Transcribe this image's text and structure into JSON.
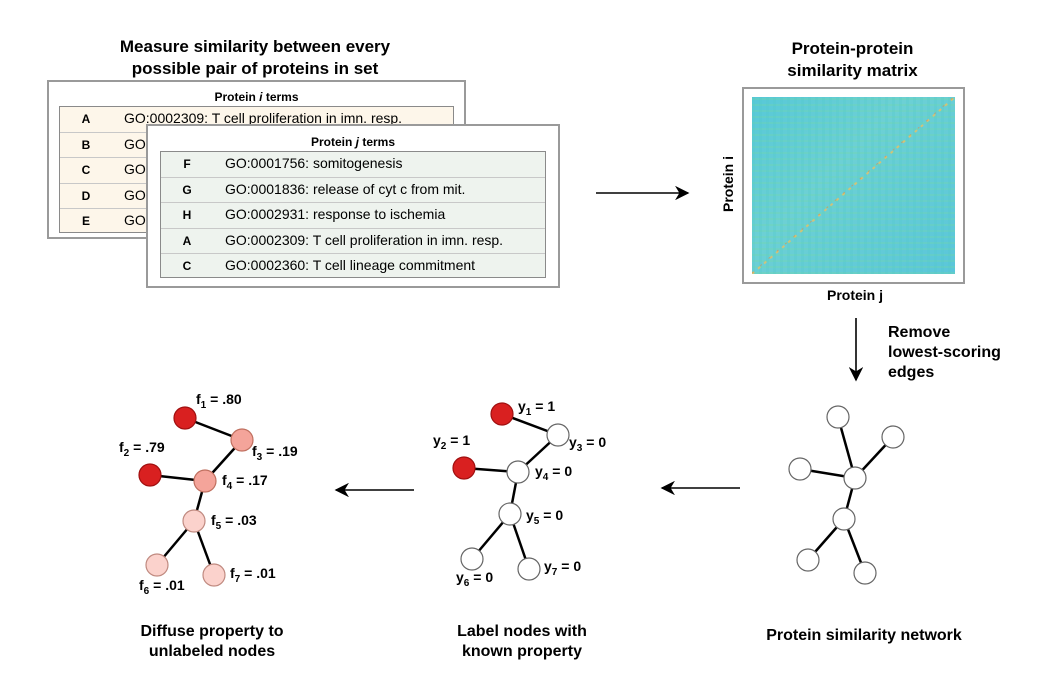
{
  "step1": {
    "title_line1": "Measure similarity between every",
    "title_line2": "possible pair of proteins in set",
    "table_i": {
      "header_prefix": "Protein ",
      "header_var": "i",
      "header_suffix": " terms",
      "rows": [
        {
          "letter": "A",
          "term": "GO:0002309: T cell proliferation in imn. resp."
        },
        {
          "letter": "B",
          "term": "GO"
        },
        {
          "letter": "C",
          "term": "GO"
        },
        {
          "letter": "D",
          "term": "GO"
        },
        {
          "letter": "E",
          "term": "GO"
        }
      ]
    },
    "table_j": {
      "header_prefix": "Protein ",
      "header_var": "j",
      "header_suffix": " terms",
      "rows": [
        {
          "letter": "F",
          "term": "GO:0001756: somitogenesis"
        },
        {
          "letter": "G",
          "term": "GO:0001836: release of cyt c from mit."
        },
        {
          "letter": "H",
          "term": "GO:0002931: response to ischemia"
        },
        {
          "letter": "A",
          "term": "GO:0002309: T cell proliferation in imn. resp."
        },
        {
          "letter": "C",
          "term": "GO:0002360: T cell lineage commitment"
        }
      ]
    }
  },
  "step2": {
    "title_line1": "Protein-protein",
    "title_line2": "similarity matrix",
    "ylabel": "Protein i",
    "xlabel": "Protein j"
  },
  "step3": {
    "label_line1": "Remove",
    "label_line2": "lowest-scoring",
    "label_line3": "edges",
    "caption": "Protein similarity network"
  },
  "step4": {
    "caption_line1": "Label nodes with",
    "caption_line2": "known property",
    "labels": [
      {
        "sym": "y",
        "sub": "1",
        "val": " = 1"
      },
      {
        "sym": "y",
        "sub": "2",
        "val": " = 1"
      },
      {
        "sym": "y",
        "sub": "3",
        "val": " = 0"
      },
      {
        "sym": "y",
        "sub": "4",
        "val": " = 0"
      },
      {
        "sym": "y",
        "sub": "5",
        "val": " = 0"
      },
      {
        "sym": "y",
        "sub": "6",
        "val": " = 0"
      },
      {
        "sym": "y",
        "sub": "7",
        "val": " = 0"
      }
    ]
  },
  "step5": {
    "caption_line1": "Diffuse property to",
    "caption_line2": "unlabeled nodes",
    "labels": [
      {
        "sym": "f",
        "sub": "1",
        "val": " = .80"
      },
      {
        "sym": "f",
        "sub": "2",
        "val": " = .79"
      },
      {
        "sym": "f",
        "sub": "3",
        "val": " = .19"
      },
      {
        "sym": "f",
        "sub": "4",
        "val": " = .17"
      },
      {
        "sym": "f",
        "sub": "5",
        "val": " = .03"
      },
      {
        "sym": "f",
        "sub": "6",
        "val": " = .01"
      },
      {
        "sym": "f",
        "sub": "7",
        "val": " = .01"
      }
    ]
  },
  "colors": {
    "labeled_node": "#d92020",
    "unlabeled_node": "#ffffff",
    "diffused_high": "#f4a49a",
    "diffused_low": "#fbd2cc",
    "edge": "#000000",
    "matrix_base": "#5cc8d8"
  }
}
